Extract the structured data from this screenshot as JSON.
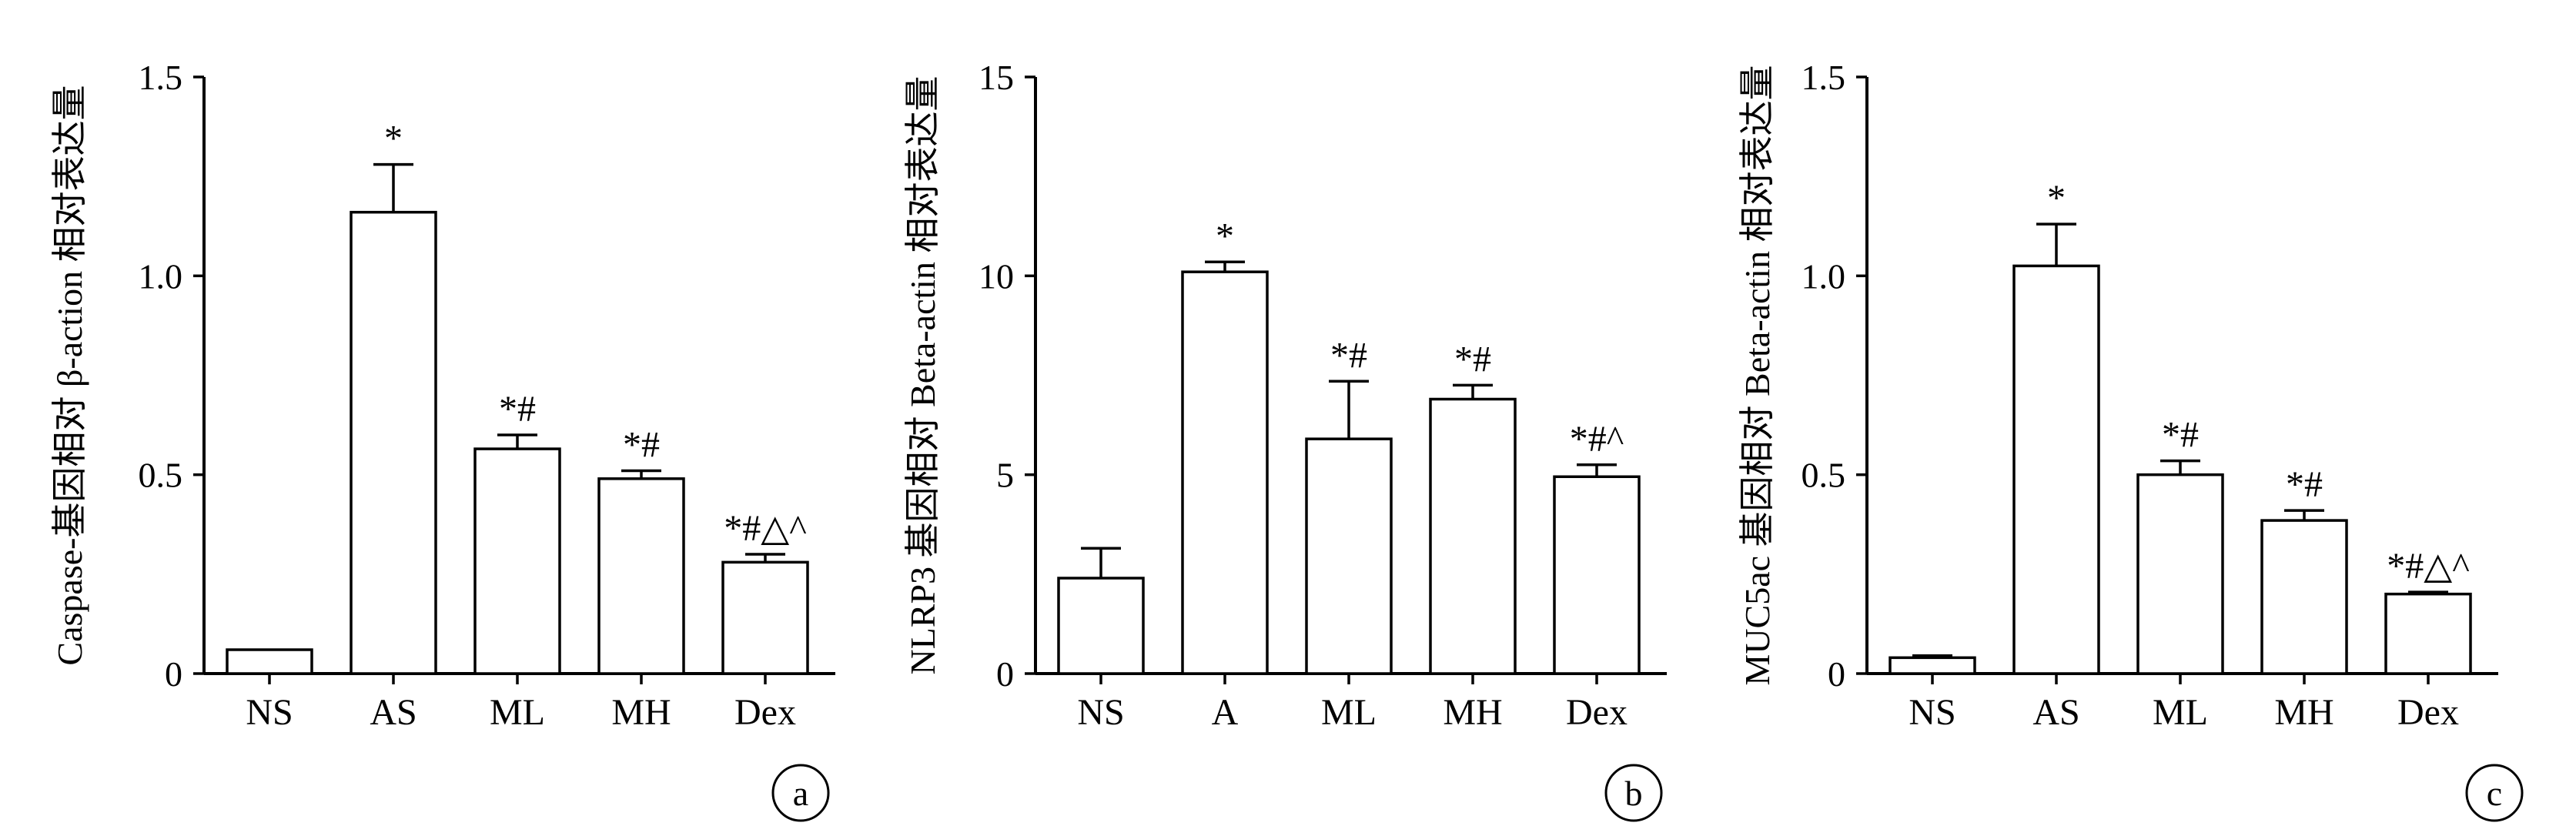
{
  "chart_data": [
    {
      "type": "bar",
      "panel_label": "a",
      "ylabel": "Caspase-基因相对 β-action 相对表达量",
      "xlabel": "",
      "ylim": [
        0,
        1.5
      ],
      "yticks": [
        "0",
        "0.5",
        "1.0",
        "1.5"
      ],
      "categories": [
        "NS",
        "AS",
        "ML",
        "MH",
        "Dex"
      ],
      "values": [
        0.06,
        1.16,
        0.565,
        0.49,
        0.28
      ],
      "errors": [
        0.0,
        0.12,
        0.035,
        0.02,
        0.02
      ],
      "annotations": [
        "",
        "*",
        "*#",
        "*#",
        "*#△^"
      ]
    },
    {
      "type": "bar",
      "panel_label": "b",
      "ylabel": "NLRP3 基因相对 Beta-actin 相对表达量",
      "xlabel": "",
      "ylim": [
        0,
        15
      ],
      "yticks": [
        "0",
        "5",
        "10",
        "15"
      ],
      "categories": [
        "NS",
        "A",
        "ML",
        "MH",
        "Dex"
      ],
      "values": [
        2.4,
        10.1,
        5.9,
        6.9,
        4.95
      ],
      "errors": [
        0.75,
        0.25,
        1.45,
        0.35,
        0.3
      ],
      "annotations": [
        "",
        "*",
        "*#",
        "*#",
        "*#^"
      ]
    },
    {
      "type": "bar",
      "panel_label": "c",
      "ylabel": "MUC5ac 基因相对 Beta-actin 相对表达量",
      "xlabel": "",
      "ylim": [
        0,
        1.5
      ],
      "yticks": [
        "0",
        "0.5",
        "1.0",
        "1.5"
      ],
      "categories": [
        "NS",
        "AS",
        "ML",
        "MH",
        "Dex"
      ],
      "values": [
        0.04,
        1.025,
        0.5,
        0.385,
        0.2
      ],
      "errors": [
        0.005,
        0.105,
        0.035,
        0.025,
        0.005
      ],
      "annotations": [
        "",
        "*",
        "*#",
        "*#",
        "*#△^"
      ]
    }
  ],
  "colors": {
    "bar_fill": "#ffffff",
    "stroke": "#000000",
    "text": "#000000"
  }
}
